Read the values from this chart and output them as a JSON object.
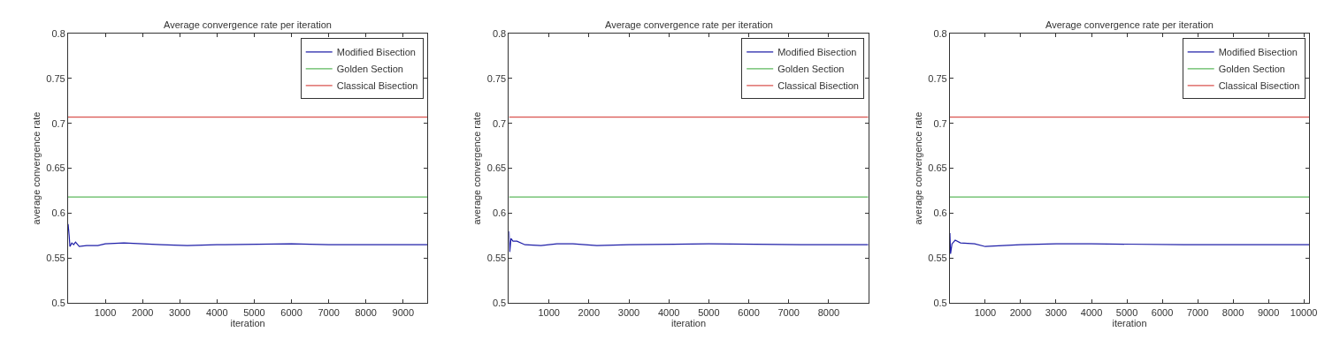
{
  "chart_data": [
    {
      "type": "line",
      "title": "Average convergence rate per iteration",
      "xlabel": "iteration",
      "ylabel": "average convergence rate",
      "xlim": [
        0,
        9650
      ],
      "ylim": [
        0.5,
        0.8
      ],
      "xticks": [
        1000,
        2000,
        3000,
        4000,
        5000,
        6000,
        7000,
        8000,
        9000
      ],
      "yticks": [
        0.5,
        0.55,
        0.6,
        0.65,
        0.7,
        0.75,
        0.8
      ],
      "legend": "top right",
      "marker": "none",
      "line_style": "solid",
      "series": [
        {
          "name": "Modified Bisection",
          "color": "#1f1fa8",
          "x": [
            1,
            30,
            50,
            100,
            150,
            200,
            300,
            500,
            800,
            1000,
            1500,
            2000,
            2500,
            3200,
            4000,
            6000,
            7000,
            9650
          ],
          "values": [
            0.588,
            0.575,
            0.563,
            0.567,
            0.565,
            0.568,
            0.563,
            0.564,
            0.564,
            0.566,
            0.567,
            0.566,
            0.565,
            0.564,
            0.565,
            0.566,
            0.565,
            0.565
          ]
        },
        {
          "name": "Golden Section",
          "color": "#5cb85c",
          "x": [
            0,
            9650
          ],
          "values": [
            0.618,
            0.618
          ]
        },
        {
          "name": "Classical Bisection",
          "color": "#d9534f",
          "x": [
            0,
            9650
          ],
          "values": [
            0.707,
            0.707
          ]
        }
      ]
    },
    {
      "type": "line",
      "title": "Average convergence rate per iteration",
      "xlabel": "iteration",
      "ylabel": "average convergence rate",
      "xlim": [
        0,
        8990
      ],
      "ylim": [
        0.5,
        0.8
      ],
      "xticks": [
        1000,
        2000,
        3000,
        4000,
        5000,
        6000,
        7000,
        8000
      ],
      "yticks": [
        0.5,
        0.55,
        0.6,
        0.65,
        0.7,
        0.75,
        0.8
      ],
      "legend": "top right",
      "marker": "none",
      "line_style": "solid",
      "series": [
        {
          "name": "Modified Bisection",
          "color": "#1f1fa8",
          "x": [
            1,
            20,
            50,
            100,
            200,
            400,
            800,
            1200,
            1600,
            2200,
            3000,
            5000,
            7300,
            8990
          ],
          "values": [
            0.58,
            0.557,
            0.572,
            0.569,
            0.569,
            0.565,
            0.564,
            0.566,
            0.566,
            0.564,
            0.565,
            0.566,
            0.565,
            0.565
          ]
        },
        {
          "name": "Golden Section",
          "color": "#5cb85c",
          "x": [
            0,
            8990
          ],
          "values": [
            0.618,
            0.618
          ]
        },
        {
          "name": "Classical Bisection",
          "color": "#d9534f",
          "x": [
            0,
            8990
          ],
          "values": [
            0.707,
            0.707
          ]
        }
      ]
    },
    {
      "type": "line",
      "title": "Average convergence rate per iteration",
      "xlabel": "iteration",
      "ylabel": "average convergence rate",
      "xlim": [
        0,
        10150
      ],
      "ylim": [
        0.5,
        0.8
      ],
      "xticks": [
        1000,
        2000,
        3000,
        4000,
        5000,
        6000,
        7000,
        8000,
        9000,
        10000
      ],
      "yticks": [
        0.5,
        0.55,
        0.6,
        0.65,
        0.7,
        0.75,
        0.8
      ],
      "legend": "top right",
      "marker": "none",
      "line_style": "solid",
      "series": [
        {
          "name": "Modified Bisection",
          "color": "#1f1fa8",
          "x": [
            1,
            20,
            60,
            150,
            300,
            700,
            1000,
            1500,
            2000,
            3000,
            4000,
            6600,
            10150
          ],
          "values": [
            0.578,
            0.555,
            0.566,
            0.57,
            0.567,
            0.566,
            0.563,
            0.564,
            0.565,
            0.566,
            0.566,
            0.565,
            0.565
          ]
        },
        {
          "name": "Golden Section",
          "color": "#5cb85c",
          "x": [
            0,
            10150
          ],
          "values": [
            0.618,
            0.618
          ]
        },
        {
          "name": "Classical Bisection",
          "color": "#d9534f",
          "x": [
            0,
            10150
          ],
          "values": [
            0.707,
            0.707
          ]
        }
      ]
    }
  ]
}
